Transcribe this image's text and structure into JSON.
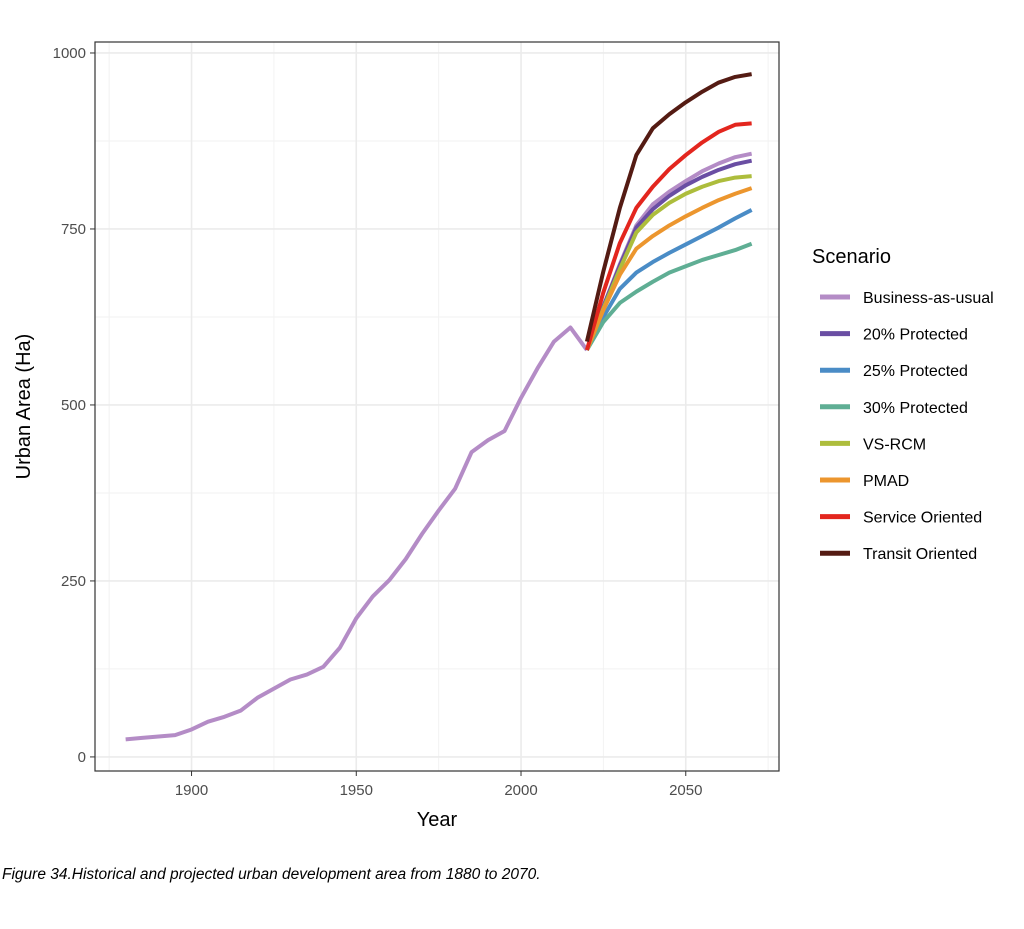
{
  "chart_data": {
    "type": "line",
    "xlabel": "Year",
    "ylabel": "Urban Area (Ha)",
    "xlim": [
      1870.7,
      2078.3
    ],
    "ylim": [
      -20,
      1015.6
    ],
    "xticks": [
      1900,
      1950,
      2000,
      2050
    ],
    "yticks": [
      0,
      250,
      500,
      750,
      1000
    ],
    "grid": true,
    "legend_title": "Scenario",
    "legend_position": "right",
    "historical": {
      "name": "Business-as-usual",
      "x": [
        1880,
        1885,
        1890,
        1895,
        1900,
        1905,
        1910,
        1915,
        1920,
        1925,
        1930,
        1935,
        1940,
        1945,
        1950,
        1955,
        1960,
        1965,
        1970,
        1975,
        1980,
        1985,
        1990,
        1995,
        2000,
        2005,
        2010,
        2015,
        2020
      ],
      "y": [
        25,
        27,
        29,
        31,
        39,
        50,
        57,
        66,
        84,
        97,
        110,
        117,
        128,
        155,
        197,
        228,
        251,
        281,
        317,
        350,
        381,
        433,
        450,
        463,
        510,
        552,
        590,
        610,
        578
      ]
    },
    "projection_x": [
      2020,
      2025,
      2030,
      2035,
      2040,
      2045,
      2050,
      2055,
      2060,
      2065,
      2070
    ],
    "series": [
      {
        "name": "Business-as-usual",
        "color": "#b48cc6",
        "values": [
          578,
          640,
          700,
          755,
          785,
          803,
          818,
          832,
          843,
          852,
          857
        ]
      },
      {
        "name": "20% Protected",
        "color": "#6a4ea3",
        "values": [
          578,
          640,
          698,
          752,
          778,
          797,
          812,
          824,
          834,
          842,
          847
        ]
      },
      {
        "name": "25% Protected",
        "color": "#4a8cc6",
        "values": [
          578,
          625,
          665,
          688,
          703,
          716,
          728,
          740,
          752,
          765,
          777
        ]
      },
      {
        "name": "30% Protected",
        "color": "#5fae94",
        "values": [
          578,
          618,
          645,
          661,
          675,
          688,
          697,
          706,
          713,
          720,
          729
        ]
      },
      {
        "name": "VS-RCM",
        "color": "#adbd3c",
        "values": [
          578,
          637,
          693,
          745,
          770,
          787,
          800,
          810,
          818,
          823,
          825
        ]
      },
      {
        "name": "PMAD",
        "color": "#ec962e",
        "values": [
          578,
          635,
          685,
          722,
          740,
          755,
          768,
          780,
          791,
          800,
          808
        ]
      },
      {
        "name": "Service Oriented",
        "color": "#e3261e",
        "values": [
          578,
          660,
          730,
          780,
          810,
          835,
          855,
          873,
          888,
          898,
          900
        ]
      },
      {
        "name": "Transit Oriented",
        "color": "#541b13",
        "values": [
          590,
          690,
          780,
          855,
          893,
          913,
          930,
          945,
          958,
          966,
          970
        ]
      }
    ]
  },
  "caption": "Figure 34.Historical and projected urban development area from 1880 to 2070."
}
